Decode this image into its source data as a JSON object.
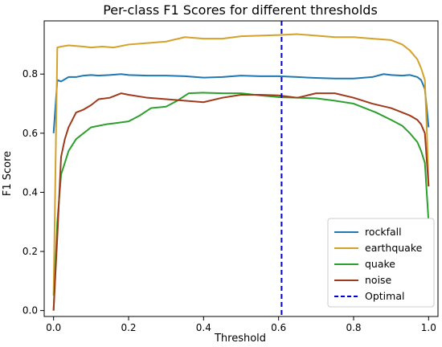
{
  "chart_data": {
    "type": "line",
    "title": "Per-class F1 Scores for different thresholds",
    "xlabel": "Threshold",
    "ylabel": "F1 Score",
    "xlim": [
      -0.025,
      1.025
    ],
    "ylim": [
      -0.02,
      0.98
    ],
    "xticks": [
      "0.0",
      "0.2",
      "0.4",
      "0.6",
      "0.8",
      "1.0"
    ],
    "yticks": [
      "0.0",
      "0.2",
      "0.4",
      "0.6",
      "0.8"
    ],
    "grid": false,
    "legend_position": "bottom-right",
    "series": [
      {
        "name": "rockfall",
        "color": "#1f77b4",
        "x": [
          0.0,
          0.01,
          0.02,
          0.04,
          0.06,
          0.08,
          0.1,
          0.12,
          0.15,
          0.18,
          0.2,
          0.25,
          0.3,
          0.35,
          0.4,
          0.45,
          0.5,
          0.55,
          0.6,
          0.65,
          0.7,
          0.75,
          0.8,
          0.85,
          0.88,
          0.9,
          0.93,
          0.95,
          0.97,
          0.98,
          0.99,
          1.0
        ],
        "values": [
          0.6,
          0.78,
          0.775,
          0.79,
          0.79,
          0.795,
          0.797,
          0.795,
          0.797,
          0.8,
          0.797,
          0.795,
          0.795,
          0.793,
          0.788,
          0.79,
          0.795,
          0.793,
          0.793,
          0.79,
          0.787,
          0.785,
          0.785,
          0.79,
          0.8,
          0.797,
          0.795,
          0.797,
          0.79,
          0.78,
          0.75,
          0.62
        ]
      },
      {
        "name": "earthquake",
        "color": "#d4a12a",
        "x": [
          0.0,
          0.01,
          0.02,
          0.04,
          0.06,
          0.08,
          0.1,
          0.13,
          0.16,
          0.2,
          0.25,
          0.3,
          0.35,
          0.4,
          0.45,
          0.5,
          0.55,
          0.6,
          0.65,
          0.7,
          0.75,
          0.8,
          0.85,
          0.9,
          0.93,
          0.95,
          0.97,
          0.98,
          0.99,
          0.995,
          1.0
        ],
        "values": [
          0.05,
          0.89,
          0.893,
          0.897,
          0.895,
          0.893,
          0.89,
          0.893,
          0.89,
          0.9,
          0.905,
          0.91,
          0.925,
          0.92,
          0.92,
          0.928,
          0.93,
          0.932,
          0.935,
          0.93,
          0.925,
          0.925,
          0.92,
          0.915,
          0.9,
          0.88,
          0.85,
          0.82,
          0.78,
          0.62,
          0.42
        ]
      },
      {
        "name": "quake",
        "color": "#2ca02c",
        "x": [
          0.0,
          0.01,
          0.02,
          0.03,
          0.04,
          0.05,
          0.06,
          0.08,
          0.1,
          0.12,
          0.14,
          0.17,
          0.2,
          0.23,
          0.26,
          0.3,
          0.33,
          0.36,
          0.4,
          0.45,
          0.5,
          0.55,
          0.6,
          0.65,
          0.7,
          0.75,
          0.8,
          0.83,
          0.86,
          0.9,
          0.93,
          0.95,
          0.97,
          0.98,
          0.99,
          1.0
        ],
        "values": [
          0.0,
          0.3,
          0.46,
          0.5,
          0.54,
          0.56,
          0.58,
          0.6,
          0.62,
          0.625,
          0.63,
          0.635,
          0.64,
          0.66,
          0.685,
          0.69,
          0.71,
          0.735,
          0.737,
          0.735,
          0.735,
          0.728,
          0.722,
          0.72,
          0.718,
          0.71,
          0.7,
          0.685,
          0.67,
          0.645,
          0.625,
          0.6,
          0.57,
          0.54,
          0.5,
          0.3
        ]
      },
      {
        "name": "noise",
        "color": "#a0391c",
        "x": [
          0.0,
          0.01,
          0.02,
          0.03,
          0.04,
          0.05,
          0.06,
          0.08,
          0.1,
          0.12,
          0.15,
          0.18,
          0.2,
          0.25,
          0.3,
          0.35,
          0.4,
          0.45,
          0.5,
          0.55,
          0.6,
          0.65,
          0.7,
          0.75,
          0.8,
          0.85,
          0.9,
          0.93,
          0.95,
          0.97,
          0.98,
          0.99,
          1.0
        ],
        "values": [
          0.0,
          0.25,
          0.52,
          0.58,
          0.62,
          0.645,
          0.67,
          0.68,
          0.695,
          0.715,
          0.72,
          0.735,
          0.73,
          0.72,
          0.715,
          0.71,
          0.705,
          0.72,
          0.73,
          0.73,
          0.728,
          0.72,
          0.735,
          0.735,
          0.72,
          0.7,
          0.685,
          0.67,
          0.66,
          0.645,
          0.63,
          0.6,
          0.42
        ]
      }
    ],
    "reference_lines": [
      {
        "name": "Optimal",
        "color": "#0000cc",
        "orientation": "vertical",
        "x": 0.608,
        "style": "dashed"
      }
    ]
  }
}
